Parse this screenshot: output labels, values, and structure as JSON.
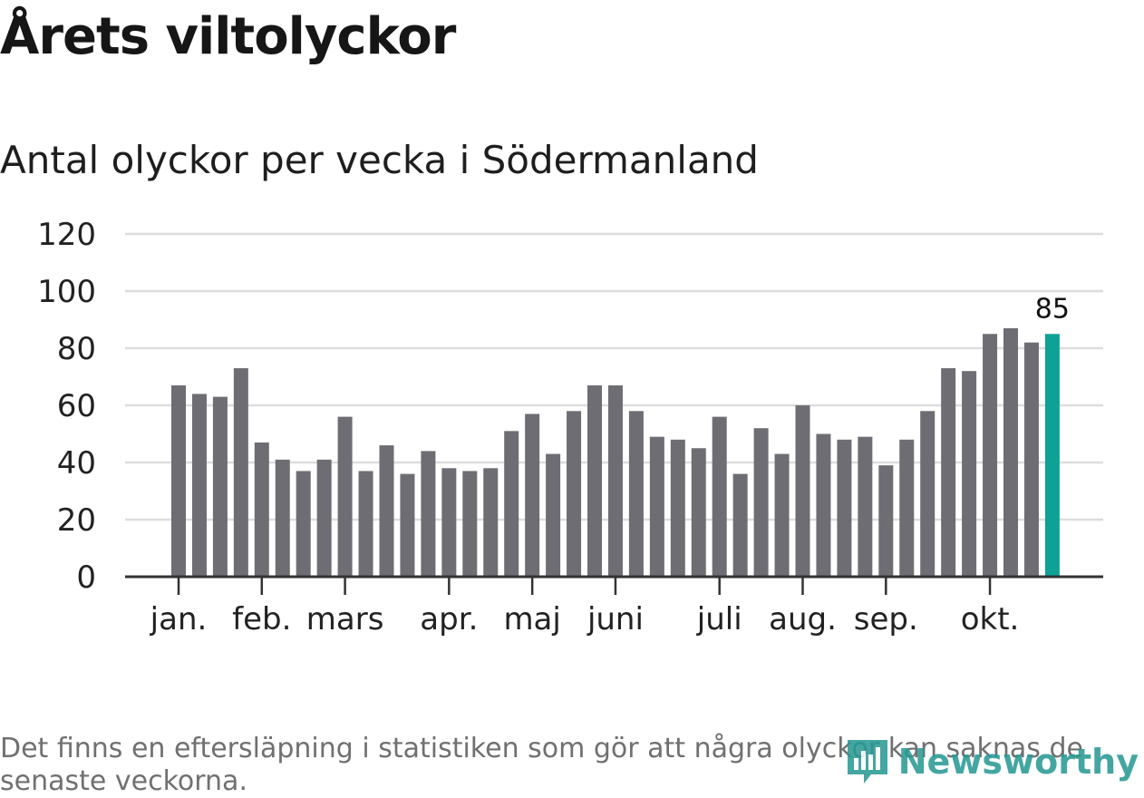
{
  "title": "Årets viltolyckor",
  "subtitle": "Antal olyckor per vecka i Södermanland",
  "note": "Det finns en eftersläpning i statistiken som gör att några olyckor kan saknas de senaste veckorna.",
  "logo_text": "Newsworthy",
  "colors": {
    "bar": "#6e6d73",
    "highlight": "#0ea196",
    "grid": "#dddddd",
    "axis": "#333333"
  },
  "chart_data": {
    "type": "bar",
    "title": "Antal olyckor per vecka i Södermanland",
    "ylim": [
      0,
      120
    ],
    "yticks": [
      "0",
      "20",
      "40",
      "60",
      "80",
      "100",
      "120"
    ],
    "grid": true,
    "month_labels": [
      {
        "label": "jan.",
        "week_index": 0
      },
      {
        "label": "feb.",
        "week_index": 4
      },
      {
        "label": "mars",
        "week_index": 8
      },
      {
        "label": "apr.",
        "week_index": 13
      },
      {
        "label": "maj",
        "week_index": 17
      },
      {
        "label": "juni",
        "week_index": 21
      },
      {
        "label": "juli",
        "week_index": 26
      },
      {
        "label": "aug.",
        "week_index": 30
      },
      {
        "label": "sep.",
        "week_index": 34
      },
      {
        "label": "okt.",
        "week_index": 39
      }
    ],
    "values": [
      67,
      64,
      63,
      73,
      47,
      41,
      37,
      41,
      56,
      37,
      46,
      36,
      44,
      38,
      37,
      38,
      51,
      57,
      43,
      58,
      67,
      67,
      58,
      49,
      48,
      45,
      56,
      36,
      52,
      43,
      60,
      50,
      48,
      49,
      39,
      48,
      58,
      73,
      72,
      85,
      87,
      82,
      85
    ],
    "highlight_index": 42,
    "highlight_label": "85"
  }
}
